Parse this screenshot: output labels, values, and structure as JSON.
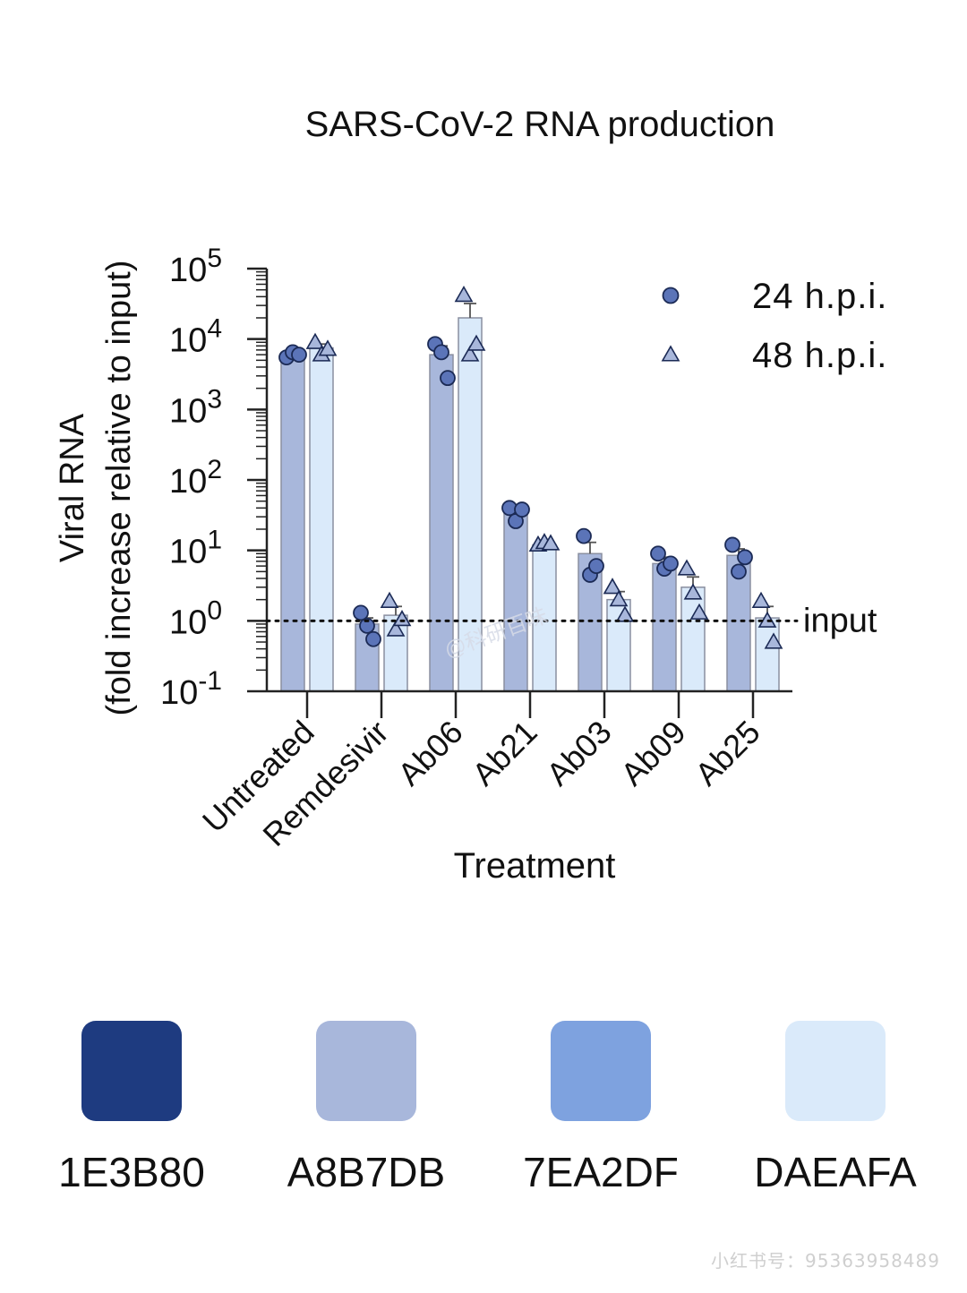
{
  "chart_data": {
    "type": "bar",
    "title": "SARS-CoV-2 RNA production",
    "xlabel": "Treatment",
    "ylabel_line1": "Viral RNA",
    "ylabel_line2": "(fold increase relative to input)",
    "yscale": "log",
    "ylim": [
      0.1,
      100000
    ],
    "ytick_exponents": [
      "-1",
      "0",
      "1",
      "2",
      "3",
      "4",
      "5"
    ],
    "ytick_base": "10",
    "categories": [
      "Untreated",
      "Remdesivir",
      "Ab06",
      "Ab21",
      "Ab03",
      "Ab09",
      "Ab25"
    ],
    "series": [
      {
        "name": "24 h.p.i.",
        "marker": "circle",
        "bar_color": "#A8B7DB",
        "marker_color": "#5B74B8",
        "values": [
          6000,
          0.9,
          6000,
          35,
          9,
          6.5,
          8.5
        ],
        "errors": [
          800,
          0.2,
          2000,
          6,
          4,
          1.5,
          2
        ],
        "points": [
          [
            5500,
            6500,
            6000
          ],
          [
            1.3,
            0.85,
            0.55
          ],
          [
            8500,
            6500,
            2800
          ],
          [
            40,
            26,
            38
          ],
          [
            16,
            4.5,
            6
          ],
          [
            9,
            5.5,
            6.5
          ],
          [
            12,
            5,
            8
          ]
        ]
      },
      {
        "name": "48 h.p.i.",
        "marker": "triangle",
        "bar_color": "#DAEAFA",
        "marker_color": "#A8B7DB",
        "values": [
          7500,
          1.2,
          20000,
          12,
          2,
          3,
          1.1
        ],
        "errors": [
          1000,
          0.4,
          12000,
          1,
          0.6,
          1.2,
          0.5
        ],
        "points": [
          [
            9000,
            6000,
            7200
          ],
          [
            1.9,
            0.75,
            1.05
          ],
          [
            42000,
            6000,
            8500
          ],
          [
            12,
            13,
            12.5
          ],
          [
            3,
            2,
            1.2
          ],
          [
            5.5,
            2.5,
            1.3
          ],
          [
            1.9,
            1.0,
            0.5
          ]
        ]
      }
    ],
    "reference_line": {
      "value": 1,
      "label": "input",
      "style": "dotted"
    },
    "legend_position": "top-right",
    "watermark": "@科研百味"
  },
  "palette": [
    {
      "hex": "#1E3B80",
      "label": "1E3B80"
    },
    {
      "hex": "#A8B7DB",
      "label": "A8B7DB"
    },
    {
      "hex": "#7EA2DF",
      "label": "7EA2DF"
    },
    {
      "hex": "#DAEAFA",
      "label": "DAEAFA"
    }
  ],
  "footer_id": "小红书号：95363958489"
}
